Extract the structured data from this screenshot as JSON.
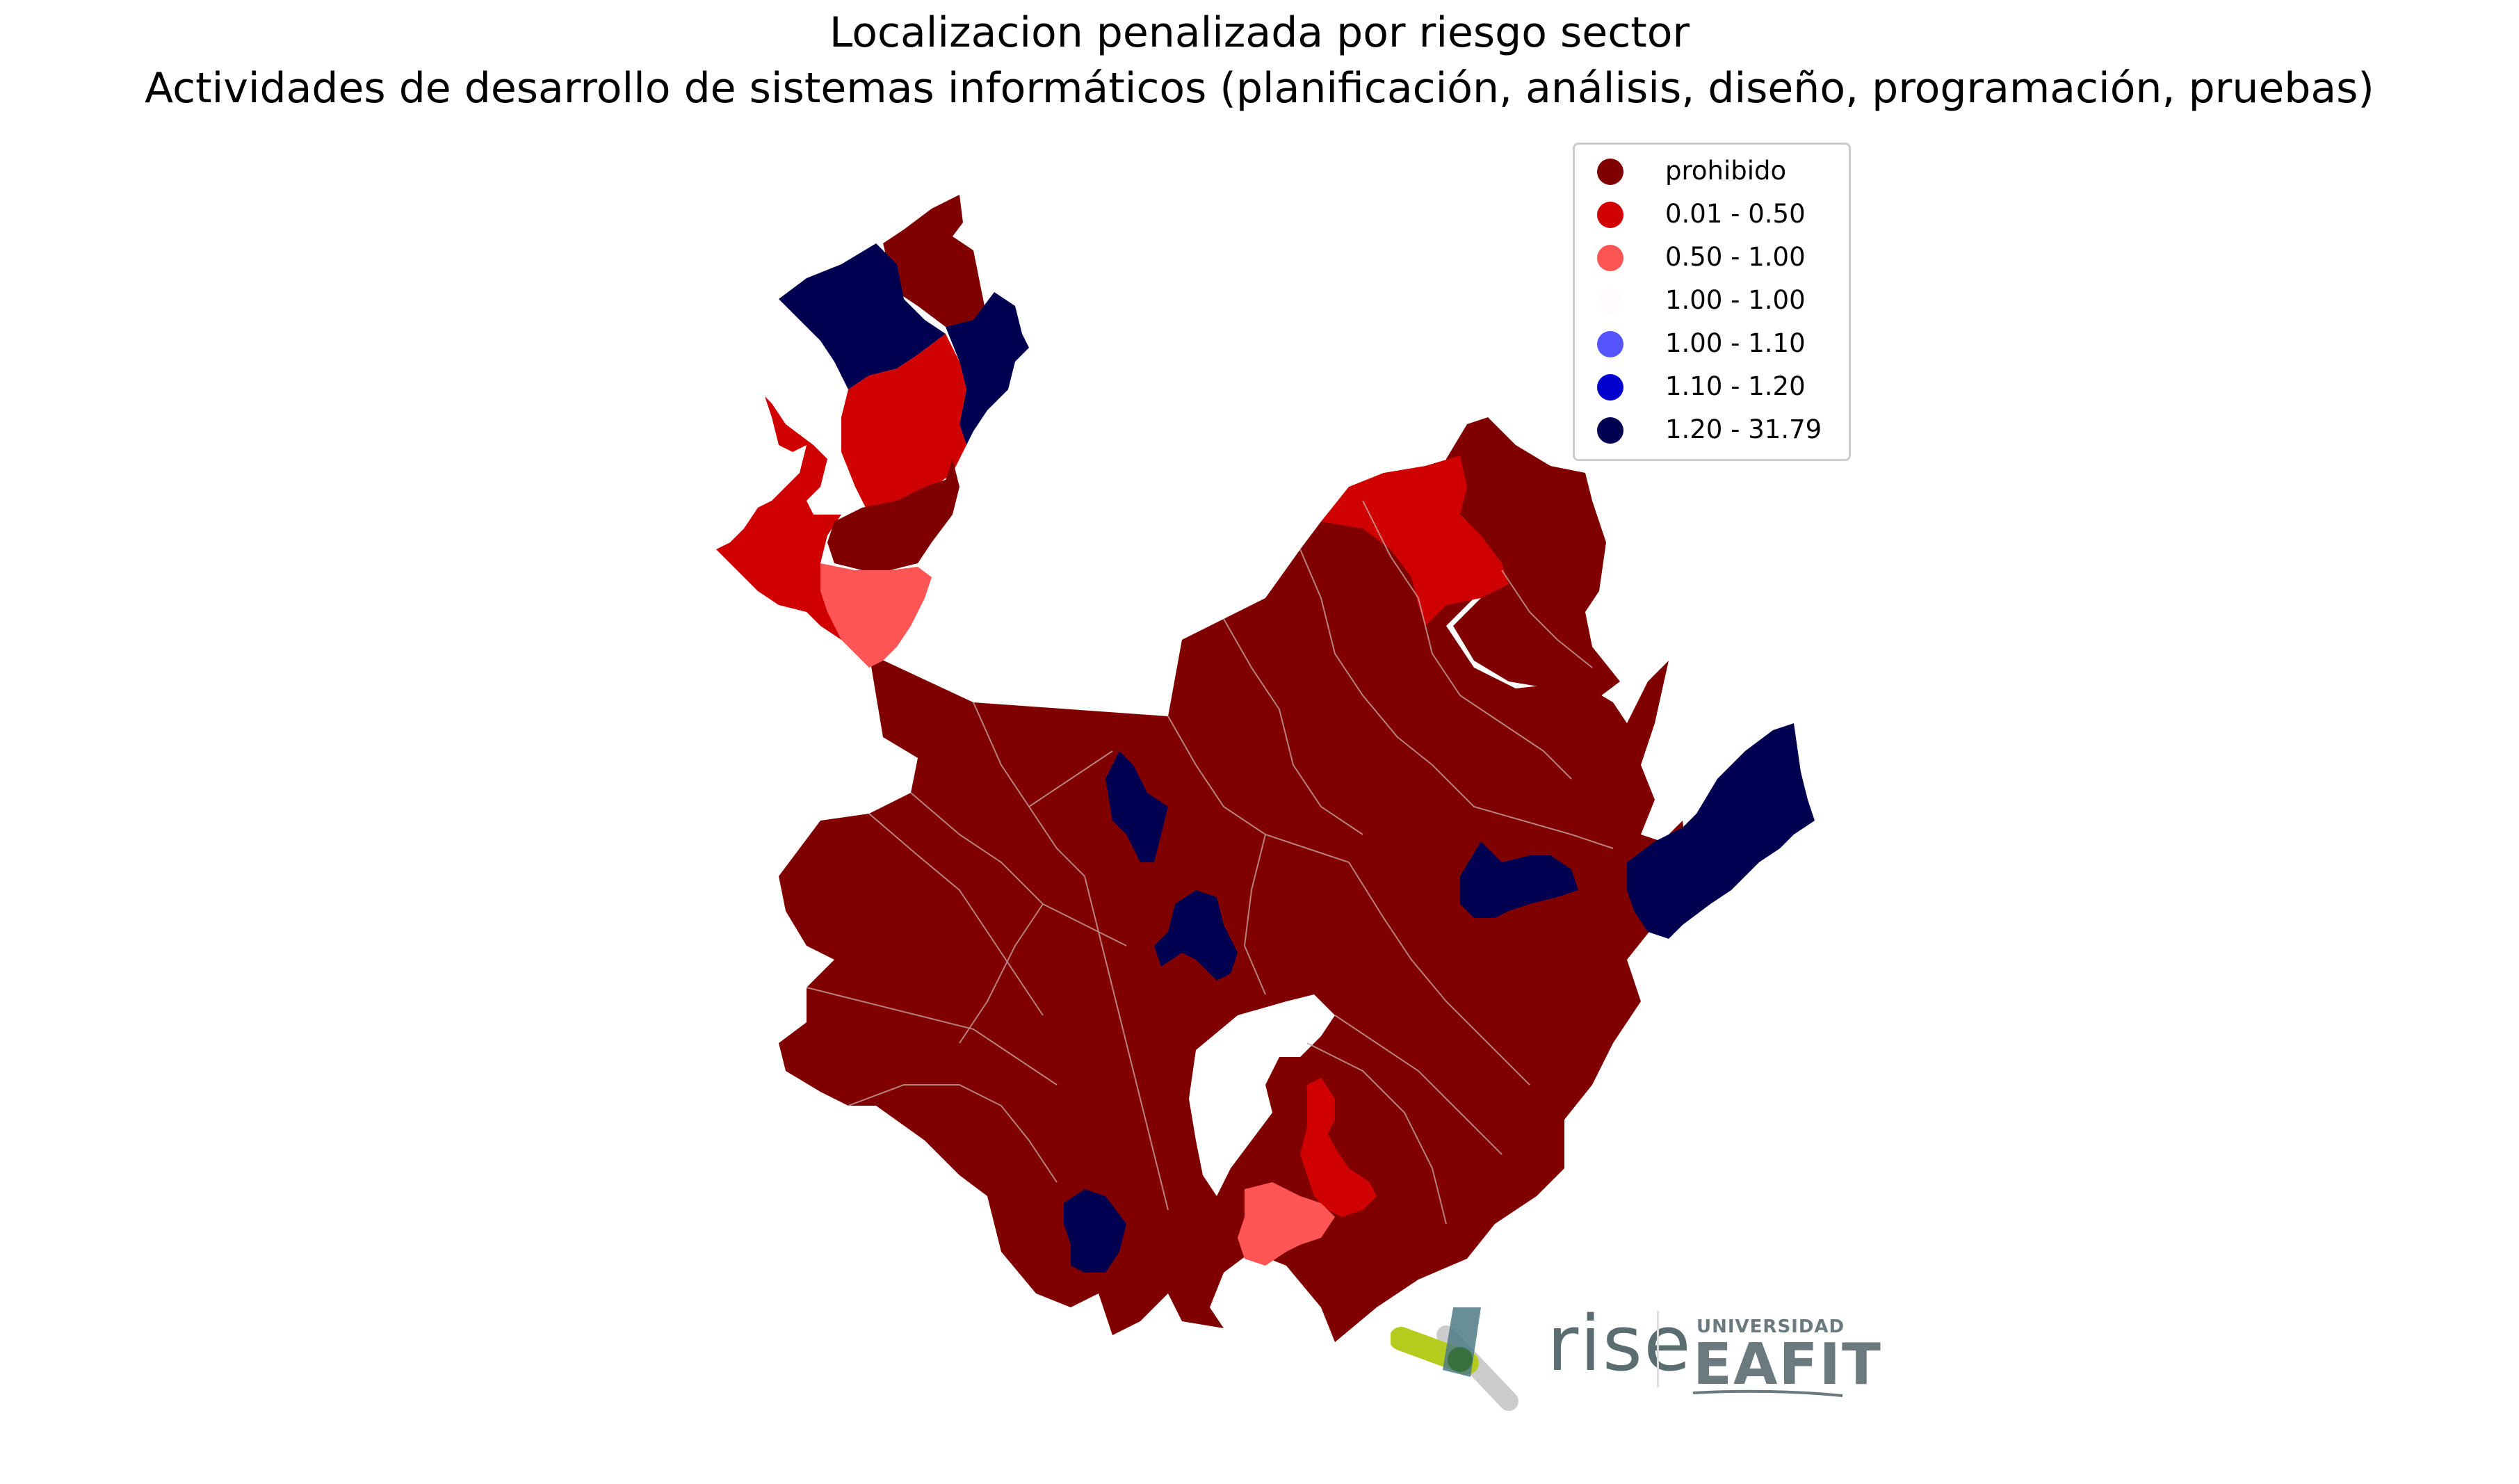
{
  "title": {
    "line1": "Localizacion penalizada por riesgo sector",
    "line2": "Actividades de desarrollo de sistemas informáticos (planificación, análisis, diseño, programación, pruebas)"
  },
  "colors": {
    "prohibido": "#800000",
    "c1": "#d10000",
    "c2": "#ff5555",
    "c3": "#fffbff",
    "c4": "#5555ff",
    "c5": "#0000cc",
    "c6": "#000050"
  },
  "legend": {
    "items": [
      {
        "label": "prohibido",
        "color": "#800000"
      },
      {
        "label": "0.01 - 0.50",
        "color": "#d10000"
      },
      {
        "label": "0.50 - 1.00",
        "color": "#ff5555"
      },
      {
        "label": "1.00 - 1.00",
        "color": "#fffbff"
      },
      {
        "label": "1.00 - 1.10",
        "color": "#5555ff"
      },
      {
        "label": "1.10 - 1.20",
        "color": "#0000cc"
      },
      {
        "label": "1.20 - 31.79",
        "color": "#000050"
      }
    ]
  },
  "logos": {
    "rise": "rise",
    "universidad": "UNIVERSIDAD",
    "eafit": "EAFIT"
  }
}
